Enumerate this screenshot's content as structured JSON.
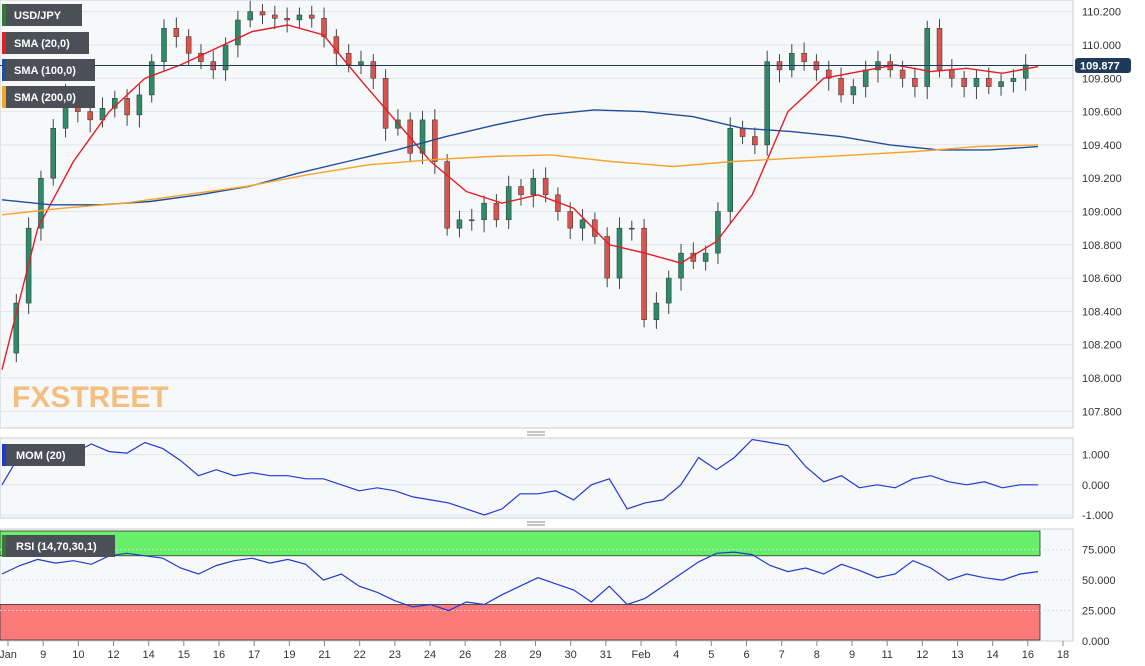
{
  "chart_data": {
    "type": "candlestick",
    "symbol": "USD/JPY",
    "last_price": "109.877",
    "x_ticks": [
      "Jan",
      "9",
      "10",
      "12",
      "14",
      "15",
      "16",
      "17",
      "19",
      "21",
      "22",
      "23",
      "24",
      "26",
      "28",
      "29",
      "30",
      "31",
      "Feb",
      "4",
      "5",
      "6",
      "7",
      "8",
      "9",
      "11",
      "12",
      "13",
      "14",
      "16",
      "18"
    ],
    "price_panel": {
      "y_ticks": [
        "110.200",
        "110.000",
        "109.800",
        "109.600",
        "109.400",
        "109.200",
        "109.000",
        "108.800",
        "108.600",
        "108.400",
        "108.200",
        "108.000",
        "107.800"
      ],
      "ylim": [
        107.7,
        110.27
      ],
      "close_path": [
        108.15,
        108.45,
        108.9,
        109.2,
        109.5,
        109.7,
        109.6,
        109.55,
        109.62,
        109.68,
        109.58,
        109.7,
        109.9,
        110.1,
        110.05,
        109.95,
        109.9,
        109.85,
        110.0,
        110.15,
        110.2,
        110.18,
        110.16,
        110.15,
        110.18,
        110.16,
        110.05,
        109.95,
        109.88,
        109.9,
        109.8,
        109.5,
        109.55,
        109.35,
        109.55,
        109.3,
        108.9,
        108.95,
        108.95,
        109.05,
        108.95,
        109.15,
        109.1,
        109.2,
        109.1,
        109.0,
        108.9,
        108.95,
        108.85,
        108.6,
        108.9,
        108.9,
        108.35,
        108.45,
        108.6,
        108.75,
        108.7,
        108.75,
        109.0,
        109.5,
        109.45,
        109.4,
        109.9,
        109.85,
        109.95,
        109.9,
        109.85,
        109.8,
        109.7,
        109.75,
        109.85,
        109.9,
        109.85,
        109.8,
        109.75,
        110.1,
        109.85,
        109.8,
        109.75,
        109.8,
        109.75,
        109.78,
        109.8,
        109.88
      ],
      "sma_series": [
        {
          "name": "SMA (20,0)",
          "color": "#e31e24",
          "values": [
            108.05,
            108.9,
            109.3,
            109.6,
            109.8,
            109.88,
            109.98,
            110.08,
            110.12,
            110.06,
            109.8,
            109.55,
            109.3,
            109.12,
            109.05,
            109.1,
            109.02,
            108.8,
            108.75,
            108.69,
            108.82,
            109.1,
            109.6,
            109.8,
            109.84,
            109.88,
            109.84,
            109.86,
            109.83,
            109.87
          ]
        },
        {
          "name": "SMA (100,0)",
          "color": "#1f4e9c",
          "values": [
            109.07,
            109.04,
            109.04,
            109.06,
            109.1,
            109.15,
            109.23,
            109.3,
            109.37,
            109.45,
            109.52,
            109.58,
            109.61,
            109.6,
            109.57,
            109.5,
            109.48,
            109.45,
            109.4,
            109.37,
            109.37,
            109.39
          ]
        },
        {
          "name": "SMA (200,0)",
          "color": "#f6a32b",
          "values": [
            108.98,
            109.02,
            109.05,
            109.1,
            109.15,
            109.22,
            109.28,
            109.31,
            109.33,
            109.34,
            109.3,
            109.27,
            109.3,
            109.32,
            109.34,
            109.36,
            109.39,
            109.4
          ]
        }
      ]
    },
    "momentum_panel": {
      "label": "MOM (20)",
      "y_ticks": [
        "1.000",
        "0.000",
        "-1.000"
      ],
      "ylim": [
        -1.1,
        1.55
      ],
      "values": [
        0.0,
        1.0,
        1.2,
        1.15,
        1.05,
        1.35,
        1.1,
        1.05,
        1.4,
        1.2,
        0.8,
        0.3,
        0.5,
        0.3,
        0.4,
        0.3,
        0.3,
        0.2,
        0.2,
        0.0,
        -0.2,
        -0.1,
        -0.2,
        -0.4,
        -0.5,
        -0.6,
        -0.8,
        -1.0,
        -0.8,
        -0.3,
        -0.3,
        -0.2,
        -0.5,
        0.0,
        0.2,
        -0.8,
        -0.6,
        -0.5,
        0.0,
        0.9,
        0.5,
        0.9,
        1.5,
        1.4,
        1.3,
        0.6,
        0.1,
        0.3,
        -0.1,
        0.0,
        -0.1,
        0.2,
        0.3,
        0.1,
        0.0,
        0.1,
        -0.1,
        0.0,
        0.0
      ]
    },
    "rsi_panel": {
      "label": "RSI (14,70,30,1)",
      "y_ticks": [
        "75.000",
        "50.000",
        "25.000",
        "0.000"
      ],
      "ylim": [
        0,
        92
      ],
      "overbought": 70,
      "oversold": 30,
      "values": [
        55,
        62,
        67,
        64,
        66,
        63,
        70,
        72,
        70,
        68,
        60,
        55,
        62,
        66,
        68,
        64,
        67,
        63,
        50,
        55,
        45,
        40,
        33,
        28,
        30,
        25,
        32,
        30,
        38,
        45,
        52,
        47,
        42,
        32,
        45,
        30,
        35,
        45,
        55,
        65,
        72,
        73,
        71,
        62,
        57,
        60,
        55,
        63,
        58,
        52,
        55,
        66,
        60,
        50,
        55,
        52,
        50,
        55,
        57
      ]
    }
  },
  "watermark": "FXSTREET"
}
